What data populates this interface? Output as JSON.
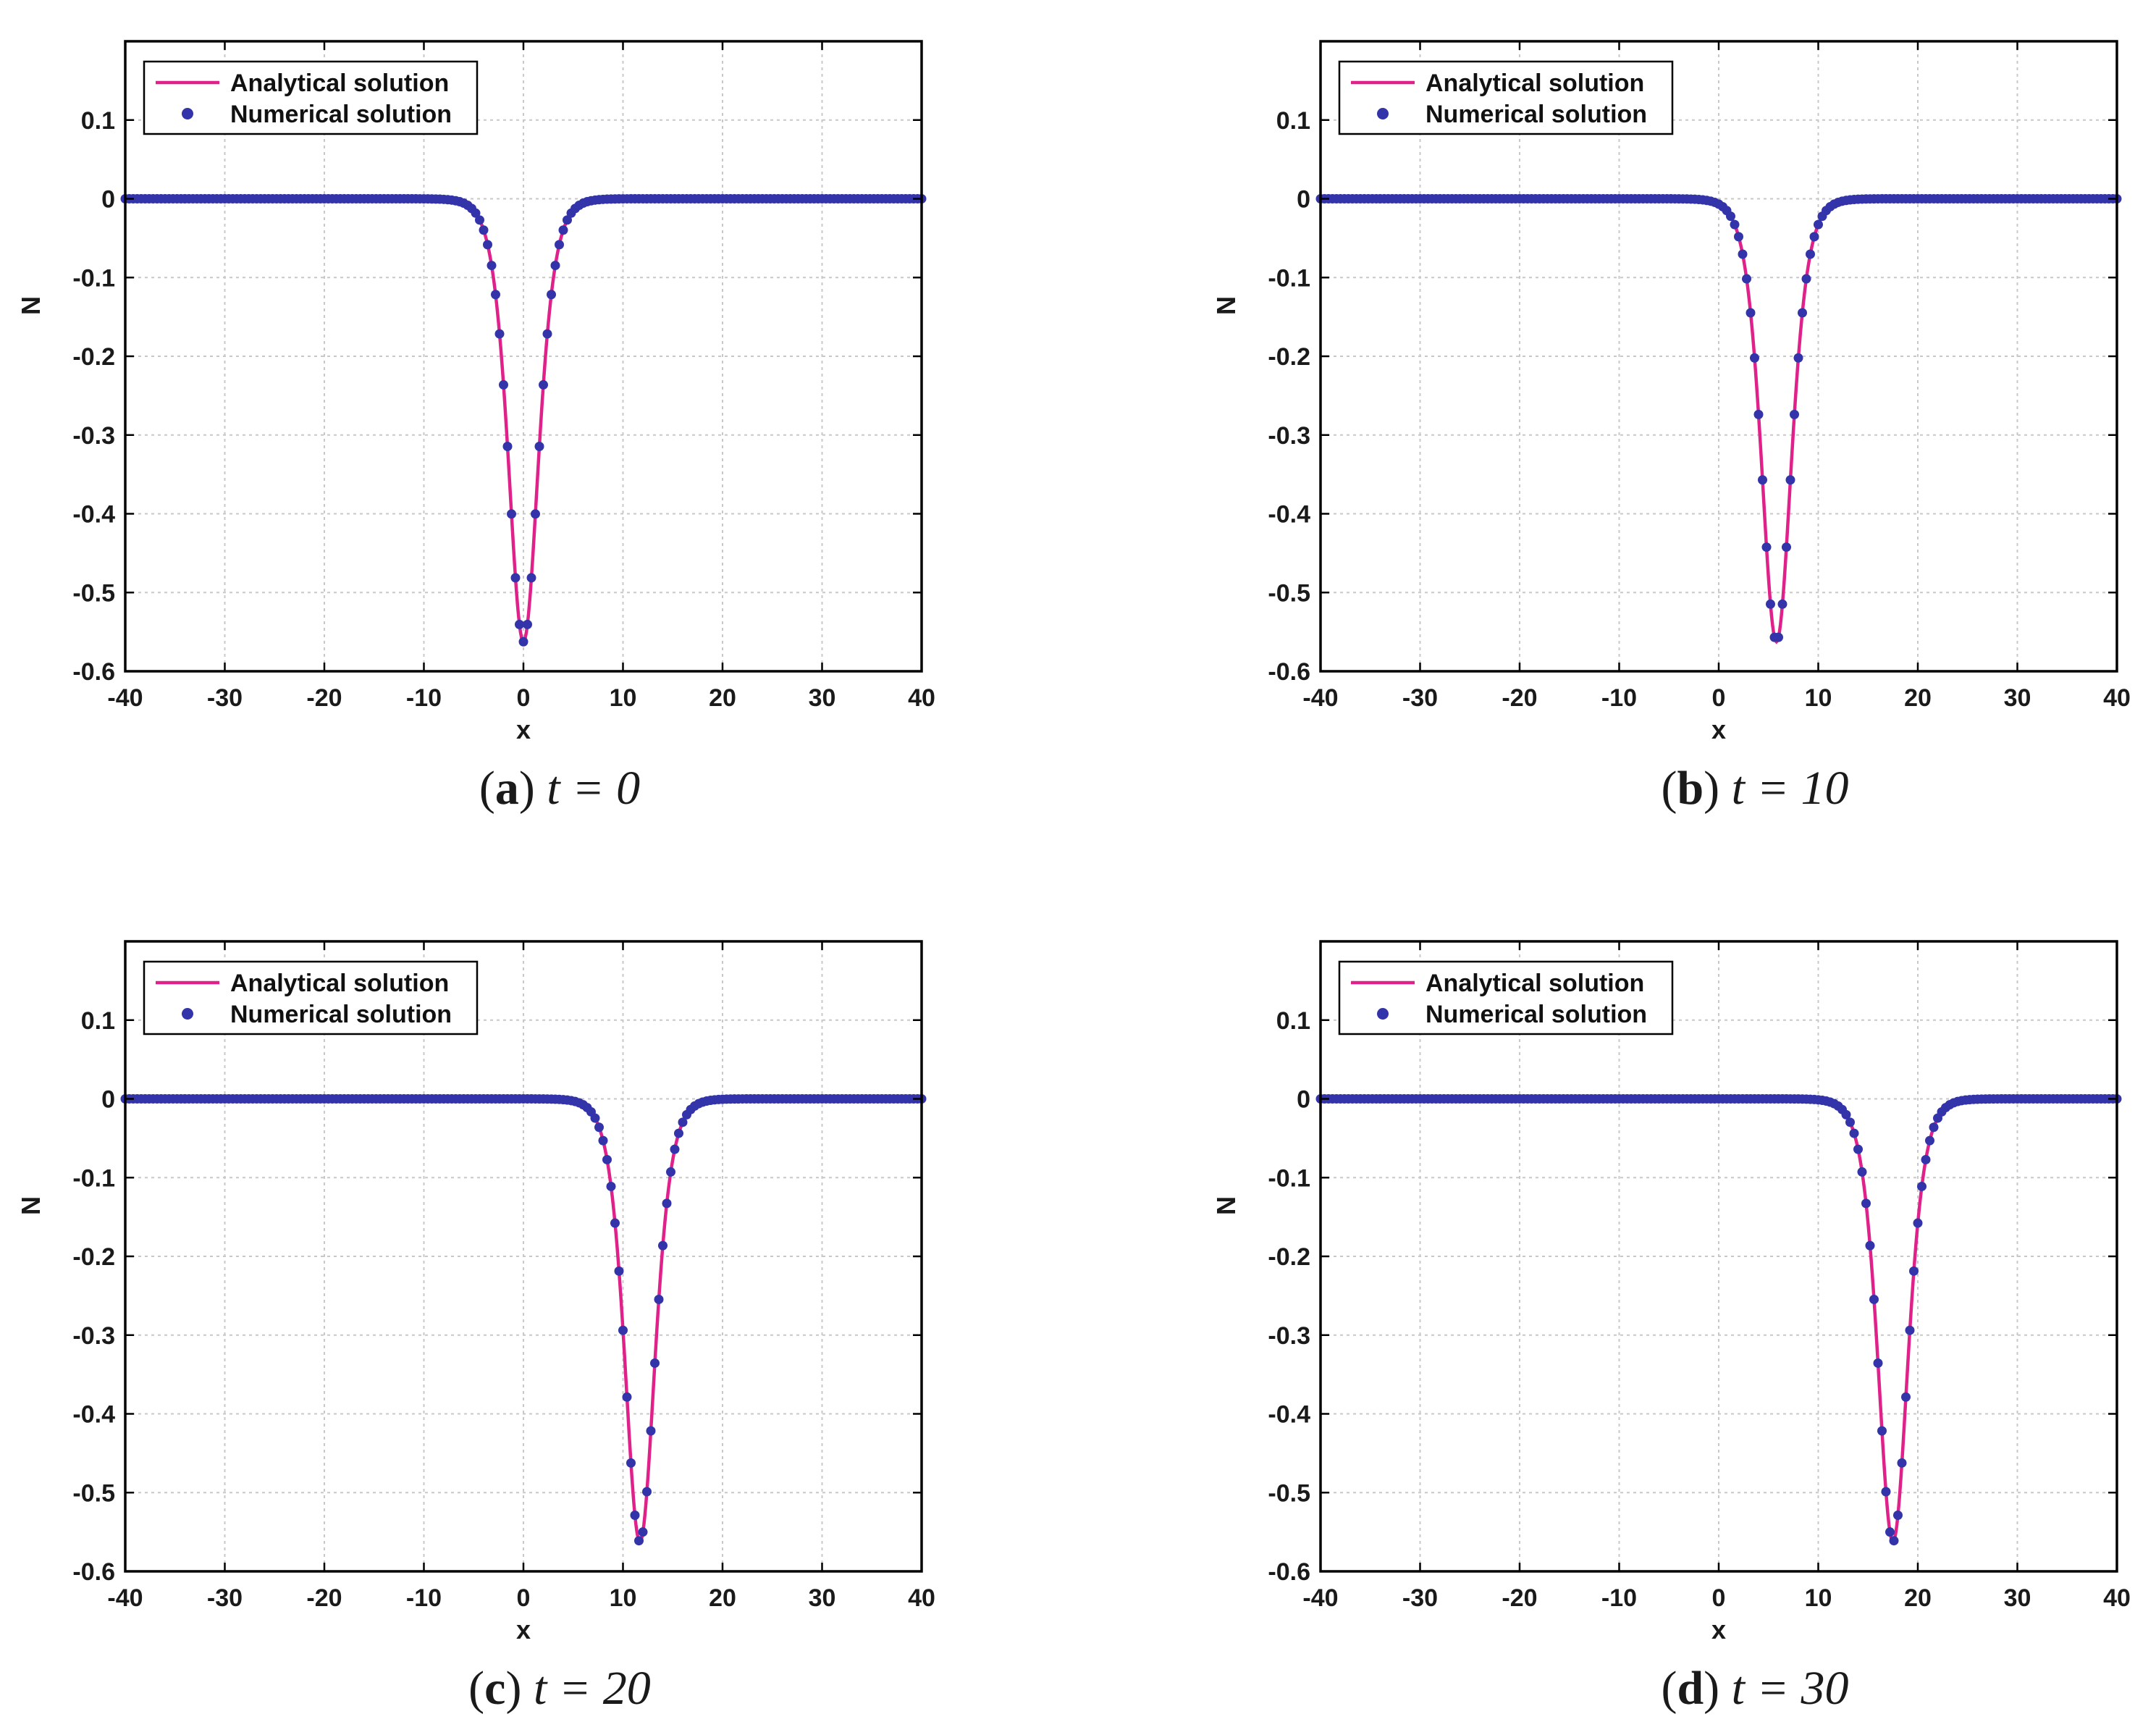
{
  "colors": {
    "analytical": "#e0218a",
    "numerical": "#3333aa",
    "grid": "#c8c8c8",
    "axis": "#000000"
  },
  "chart_data": [
    {
      "type": "line",
      "panel": "(a)",
      "caption_letter": "a",
      "caption_time": "t = 0",
      "t": 0,
      "peak_x": 0,
      "amplitude": -0.5625,
      "xlabel": "x",
      "ylabel": "N",
      "xlim": [
        -40,
        40
      ],
      "ylim": [
        -0.6,
        0.2
      ],
      "xticks": [
        "-40",
        "-30",
        "-20",
        "-10",
        "0",
        "10",
        "20",
        "30",
        "40"
      ],
      "yticks": [
        "0.1",
        "0",
        "-0.1",
        "-0.2",
        "-0.3",
        "-0.4",
        "-0.5",
        "-0.6"
      ],
      "grid": true,
      "legend": {
        "position": "top-left",
        "entries": [
          "Analytical solution",
          "Numerical solution"
        ]
      },
      "series": [
        {
          "name": "Analytical solution",
          "style": "line",
          "shape": "sech^2 soliton",
          "center": 0,
          "min": -0.5625
        },
        {
          "name": "Numerical solution",
          "style": "markers",
          "shape": "sech^2 soliton",
          "center": 0,
          "min": -0.5625
        }
      ]
    },
    {
      "type": "line",
      "panel": "(b)",
      "caption_letter": "b",
      "caption_time": "t = 10",
      "t": 10,
      "peak_x": 5.8,
      "amplitude": -0.5625,
      "xlabel": "x",
      "ylabel": "N",
      "xlim": [
        -40,
        40
      ],
      "ylim": [
        -0.6,
        0.2
      ],
      "xticks": [
        "-40",
        "-30",
        "-20",
        "-10",
        "0",
        "10",
        "20",
        "30",
        "40"
      ],
      "yticks": [
        "0.1",
        "0",
        "-0.1",
        "-0.2",
        "-0.3",
        "-0.4",
        "-0.5",
        "-0.6"
      ],
      "grid": true,
      "legend": {
        "position": "top-left",
        "entries": [
          "Analytical solution",
          "Numerical solution"
        ]
      },
      "series": [
        {
          "name": "Analytical solution",
          "style": "line",
          "shape": "sech^2 soliton",
          "center": 5.8,
          "min": -0.5625
        },
        {
          "name": "Numerical solution",
          "style": "markers",
          "shape": "sech^2 soliton",
          "center": 5.8,
          "min": -0.5625
        }
      ]
    },
    {
      "type": "line",
      "panel": "(c)",
      "caption_letter": "c",
      "caption_time": "t = 20",
      "t": 20,
      "peak_x": 11.7,
      "amplitude": -0.5625,
      "xlabel": "x",
      "ylabel": "N",
      "xlim": [
        -40,
        40
      ],
      "ylim": [
        -0.6,
        0.2
      ],
      "xticks": [
        "-40",
        "-30",
        "-20",
        "-10",
        "0",
        "10",
        "20",
        "30",
        "40"
      ],
      "yticks": [
        "0.1",
        "0",
        "-0.1",
        "-0.2",
        "-0.3",
        "-0.4",
        "-0.5",
        "-0.6"
      ],
      "grid": true,
      "legend": {
        "position": "top-left",
        "entries": [
          "Analytical solution",
          "Numerical solution"
        ]
      },
      "series": [
        {
          "name": "Analytical solution",
          "style": "line",
          "shape": "sech^2 soliton",
          "center": 11.7,
          "min": -0.5625
        },
        {
          "name": "Numerical solution",
          "style": "markers",
          "shape": "sech^2 soliton",
          "center": 11.7,
          "min": -0.5625
        }
      ]
    },
    {
      "type": "line",
      "panel": "(d)",
      "caption_letter": "d",
      "caption_time": "t = 30",
      "t": 30,
      "peak_x": 17.5,
      "amplitude": -0.5625,
      "xlabel": "x",
      "ylabel": "N",
      "xlim": [
        -40,
        40
      ],
      "ylim": [
        -0.6,
        0.2
      ],
      "xticks": [
        "-40",
        "-30",
        "-20",
        "-10",
        "0",
        "10",
        "20",
        "30",
        "40"
      ],
      "yticks": [
        "0.1",
        "0",
        "-0.1",
        "-0.2",
        "-0.3",
        "-0.4",
        "-0.5",
        "-0.6"
      ],
      "grid": true,
      "legend": {
        "position": "top-left",
        "entries": [
          "Analytical solution",
          "Numerical solution"
        ]
      },
      "series": [
        {
          "name": "Analytical solution",
          "style": "line",
          "shape": "sech^2 soliton",
          "center": 17.5,
          "min": -0.5625
        },
        {
          "name": "Numerical solution",
          "style": "markers",
          "shape": "sech^2 soliton",
          "center": 17.5,
          "min": -0.5625
        }
      ]
    }
  ]
}
